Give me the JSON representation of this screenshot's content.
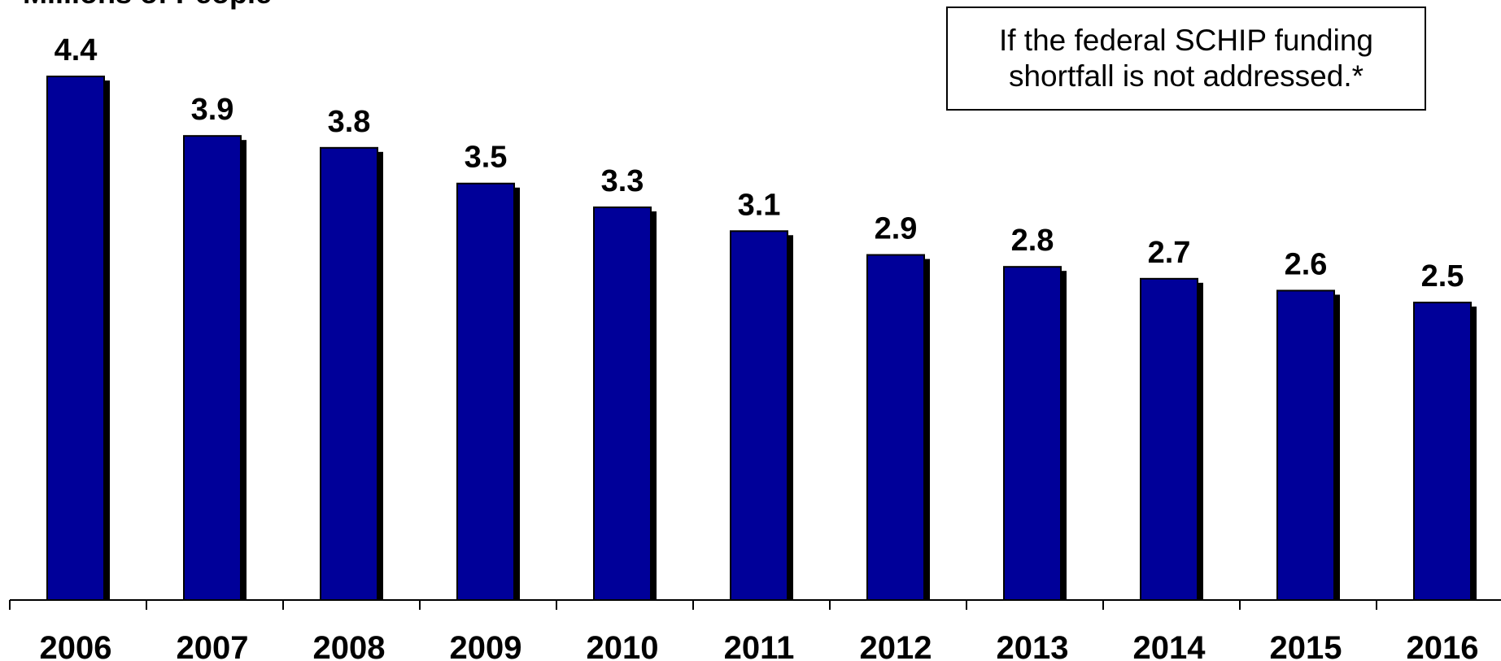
{
  "chart_data": {
    "type": "bar",
    "ylabel": "Millions of People",
    "categories": [
      "2006",
      "2007",
      "2008",
      "2009",
      "2010",
      "2011",
      "2012",
      "2013",
      "2014",
      "2015",
      "2016"
    ],
    "values": [
      4.4,
      3.9,
      3.8,
      3.5,
      3.3,
      3.1,
      2.9,
      2.8,
      2.7,
      2.6,
      2.5
    ],
    "data_labels": [
      "4.4",
      "3.9",
      "3.8",
      "3.5",
      "3.3",
      "3.1",
      "2.9",
      "2.8",
      "2.7",
      "2.6",
      "2.5"
    ],
    "ylim": [
      0,
      5
    ],
    "grid": false,
    "legend": "none",
    "annotation": {
      "line1": "If the federal SCHIP funding",
      "line2": "shortfall is not addressed.*"
    },
    "colors": {
      "bar": "#000099",
      "shadow": "#000000"
    }
  }
}
